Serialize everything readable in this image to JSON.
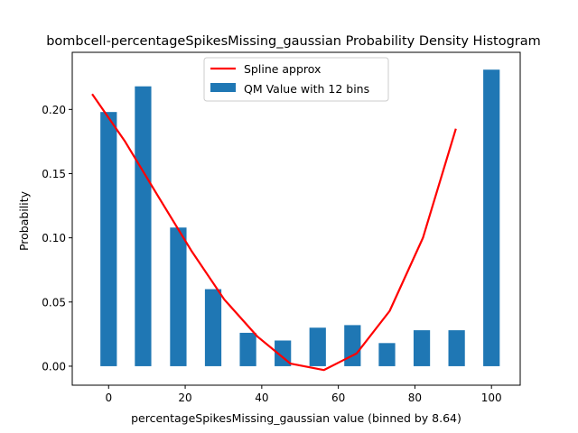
{
  "chart_data": {
    "type": "bar",
    "title": "bombcell-percentageSpikesMissing_gaussian Probability Density Histogram",
    "xlabel": "percentageSpikesMissing_gaussian value (binned by 8.64)",
    "ylabel": "Probability",
    "xlim": [
      -9.5,
      107.5
    ],
    "ylim": [
      -0.0148,
      0.2445
    ],
    "x_ticks": [
      0,
      20,
      40,
      60,
      80,
      100
    ],
    "x_tick_labels": [
      "0",
      "20",
      "40",
      "60",
      "80",
      "100"
    ],
    "y_ticks": [
      0.0,
      0.05,
      0.1,
      0.15,
      0.2
    ],
    "y_tick_labels": [
      "0.00",
      "0.05",
      "0.10",
      "0.15",
      "0.20"
    ],
    "bar_width": 4.3,
    "series": [
      {
        "name": "QM Value with 12 bins",
        "kind": "bar",
        "color": "#1f77b4",
        "x": [
          0.0,
          9.0,
          18.2,
          27.3,
          36.4,
          45.5,
          54.6,
          63.7,
          72.7,
          81.8,
          90.9,
          100.0
        ],
        "values": [
          0.198,
          0.218,
          0.108,
          0.06,
          0.026,
          0.02,
          0.03,
          0.032,
          0.018,
          0.028,
          0.028,
          0.231
        ]
      },
      {
        "name": "Spline approx",
        "kind": "line",
        "color": "#ff0000",
        "x": [
          -4.3,
          4.3,
          13.0,
          21.6,
          30.2,
          38.9,
          47.5,
          56.2,
          64.8,
          73.4,
          82.1,
          90.7
        ],
        "values": [
          0.212,
          0.175,
          0.132,
          0.09,
          0.052,
          0.023,
          0.002,
          -0.003,
          0.01,
          0.043,
          0.1,
          0.185
        ]
      }
    ],
    "legend_position": "top-center",
    "grid": false
  }
}
